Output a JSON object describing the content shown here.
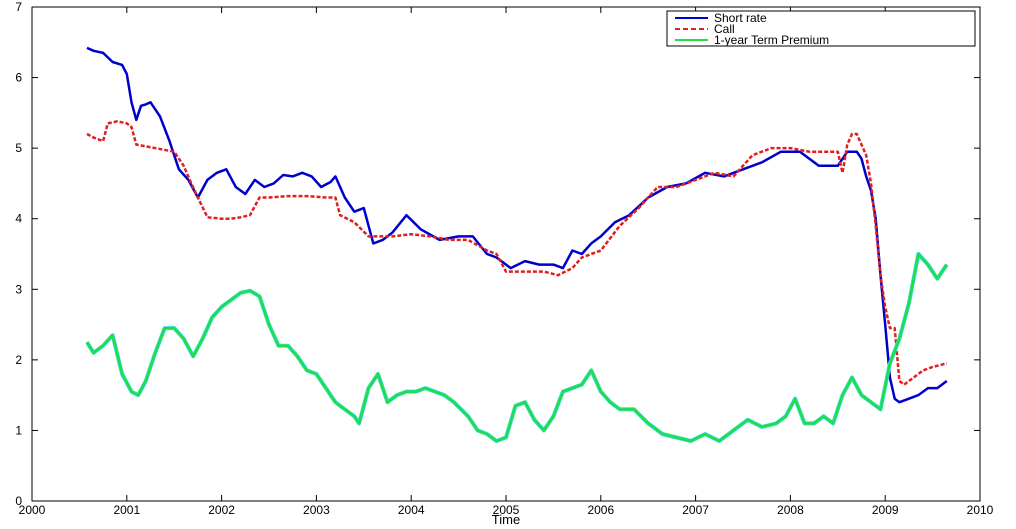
{
  "chart_data": {
    "type": "line",
    "title": "",
    "xlabel": "Time",
    "ylabel": "",
    "xlim": [
      2000,
      2010
    ],
    "ylim": [
      0,
      7
    ],
    "xticks": [
      "2000",
      "2001",
      "2002",
      "2003",
      "2004",
      "2005",
      "2006",
      "2007",
      "2008",
      "2009",
      "2010"
    ],
    "yticks": [
      "0",
      "1",
      "2",
      "3",
      "4",
      "5",
      "6",
      "7"
    ],
    "grid": false,
    "legend_position": "top-right",
    "series": [
      {
        "name": "Short rate",
        "style": "solid",
        "color": "#0000cc",
        "x": [
          2000.58,
          2000.65,
          2000.75,
          2000.85,
          2000.95,
          2001.0,
          2001.05,
          2001.1,
          2001.15,
          2001.2,
          2001.25,
          2001.35,
          2001.45,
          2001.55,
          2001.65,
          2001.75,
          2001.85,
          2001.95,
          2002.05,
          2002.15,
          2002.25,
          2002.35,
          2002.45,
          2002.55,
          2002.65,
          2002.75,
          2002.85,
          2002.95,
          2003.05,
          2003.15,
          2003.2,
          2003.3,
          2003.4,
          2003.5,
          2003.6,
          2003.7,
          2003.8,
          2003.95,
          2004.1,
          2004.3,
          2004.5,
          2004.65,
          2004.8,
          2004.9,
          2005.05,
          2005.2,
          2005.35,
          2005.5,
          2005.6,
          2005.7,
          2005.8,
          2005.9,
          2006.0,
          2006.15,
          2006.3,
          2006.5,
          2006.7,
          2006.9,
          2007.1,
          2007.3,
          2007.5,
          2007.7,
          2007.9,
          2008.1,
          2008.3,
          2008.5,
          2008.6,
          2008.7,
          2008.75,
          2008.8,
          2008.85,
          2008.9,
          2008.95,
          2009.0,
          2009.05,
          2009.1,
          2009.15,
          2009.25,
          2009.35,
          2009.45,
          2009.55,
          2009.65
        ],
        "y": [
          6.42,
          6.38,
          6.35,
          6.22,
          6.18,
          6.05,
          5.65,
          5.4,
          5.6,
          5.62,
          5.65,
          5.45,
          5.1,
          4.7,
          4.55,
          4.3,
          4.55,
          4.65,
          4.7,
          4.45,
          4.35,
          4.55,
          4.45,
          4.5,
          4.62,
          4.6,
          4.65,
          4.6,
          4.45,
          4.52,
          4.6,
          4.3,
          4.1,
          4.15,
          3.65,
          3.7,
          3.8,
          4.05,
          3.85,
          3.7,
          3.75,
          3.75,
          3.5,
          3.45,
          3.3,
          3.4,
          3.35,
          3.35,
          3.3,
          3.55,
          3.5,
          3.65,
          3.75,
          3.95,
          4.05,
          4.3,
          4.45,
          4.5,
          4.65,
          4.6,
          4.7,
          4.8,
          4.95,
          4.95,
          4.75,
          4.75,
          4.95,
          4.95,
          4.85,
          4.6,
          4.4,
          4.0,
          3.2,
          2.5,
          1.75,
          1.45,
          1.4,
          1.45,
          1.5,
          1.6,
          1.6,
          1.7
        ]
      },
      {
        "name": "Call",
        "style": "dashed",
        "color": "#e02020",
        "x": [
          2000.58,
          2000.65,
          2000.75,
          2000.8,
          2000.9,
          2001.0,
          2001.05,
          2001.1,
          2001.3,
          2001.5,
          2001.6,
          2001.68,
          2001.75,
          2001.85,
          2002.0,
          2002.1,
          2002.2,
          2002.3,
          2002.4,
          2002.5,
          2002.7,
          2002.9,
          2003.1,
          2003.2,
          2003.25,
          2003.4,
          2003.55,
          2003.6,
          2003.8,
          2004.0,
          2004.2,
          2004.4,
          2004.6,
          2004.8,
          2004.9,
          2005.0,
          2005.2,
          2005.4,
          2005.55,
          2005.7,
          2005.8,
          2006.0,
          2006.2,
          2006.4,
          2006.6,
          2006.8,
          2007.0,
          2007.2,
          2007.4,
          2007.6,
          2007.8,
          2008.0,
          2008.2,
          2008.4,
          2008.5,
          2008.55,
          2008.6,
          2008.65,
          2008.7,
          2008.8,
          2008.85,
          2008.9,
          2008.95,
          2009.0,
          2009.05,
          2009.1,
          2009.15,
          2009.2,
          2009.3,
          2009.4,
          2009.5,
          2009.65
        ],
        "y": [
          5.2,
          5.15,
          5.1,
          5.35,
          5.38,
          5.35,
          5.3,
          5.05,
          5.0,
          4.95,
          4.75,
          4.5,
          4.3,
          4.02,
          4.0,
          4.0,
          4.02,
          4.05,
          4.3,
          4.3,
          4.32,
          4.32,
          4.3,
          4.3,
          4.05,
          3.95,
          3.75,
          3.75,
          3.75,
          3.78,
          3.75,
          3.7,
          3.7,
          3.55,
          3.5,
          3.25,
          3.25,
          3.25,
          3.2,
          3.3,
          3.45,
          3.55,
          3.9,
          4.15,
          4.45,
          4.45,
          4.55,
          4.65,
          4.6,
          4.9,
          5.0,
          5.0,
          4.95,
          4.95,
          4.95,
          4.65,
          5.05,
          5.2,
          5.2,
          4.9,
          4.5,
          3.9,
          3.2,
          2.75,
          2.45,
          2.45,
          1.7,
          1.65,
          1.75,
          1.85,
          1.9,
          1.95
        ]
      },
      {
        "name": "1-year Term Premium",
        "style": "solid",
        "color": "#22dd44",
        "x": [
          2000.58,
          2000.65,
          2000.75,
          2000.85,
          2000.95,
          2001.05,
          2001.12,
          2001.2,
          2001.3,
          2001.4,
          2001.5,
          2001.6,
          2001.7,
          2001.8,
          2001.9,
          2002.0,
          2002.1,
          2002.2,
          2002.3,
          2002.4,
          2002.5,
          2002.6,
          2002.7,
          2002.8,
          2002.9,
          2003.0,
          2003.1,
          2003.2,
          2003.3,
          2003.4,
          2003.45,
          2003.55,
          2003.65,
          2003.75,
          2003.85,
          2003.95,
          2004.05,
          2004.15,
          2004.25,
          2004.35,
          2004.45,
          2004.6,
          2004.7,
          2004.8,
          2004.9,
          2005.0,
          2005.1,
          2005.2,
          2005.3,
          2005.4,
          2005.5,
          2005.6,
          2005.7,
          2005.8,
          2005.9,
          2006.0,
          2006.1,
          2006.2,
          2006.35,
          2006.5,
          2006.65,
          2006.8,
          2006.95,
          2007.1,
          2007.25,
          2007.4,
          2007.55,
          2007.7,
          2007.85,
          2007.95,
          2008.05,
          2008.15,
          2008.25,
          2008.35,
          2008.45,
          2008.55,
          2008.65,
          2008.75,
          2008.85,
          2008.95,
          2009.05,
          2009.15,
          2009.25,
          2009.35,
          2009.45,
          2009.55,
          2009.65
        ],
        "y": [
          2.25,
          2.1,
          2.2,
          2.35,
          1.8,
          1.55,
          1.5,
          1.7,
          2.1,
          2.45,
          2.45,
          2.3,
          2.05,
          2.3,
          2.6,
          2.75,
          2.85,
          2.95,
          2.98,
          2.9,
          2.5,
          2.2,
          2.2,
          2.05,
          1.85,
          1.8,
          1.6,
          1.4,
          1.3,
          1.2,
          1.1,
          1.6,
          1.8,
          1.4,
          1.5,
          1.55,
          1.55,
          1.6,
          1.55,
          1.5,
          1.4,
          1.2,
          1.0,
          0.95,
          0.85,
          0.9,
          1.35,
          1.4,
          1.15,
          1.0,
          1.2,
          1.55,
          1.6,
          1.65,
          1.85,
          1.55,
          1.4,
          1.3,
          1.3,
          1.1,
          0.95,
          0.9,
          0.85,
          0.95,
          0.85,
          1.0,
          1.15,
          1.05,
          1.1,
          1.2,
          1.45,
          1.1,
          1.1,
          1.2,
          1.1,
          1.5,
          1.75,
          1.5,
          1.4,
          1.3,
          1.95,
          2.3,
          2.8,
          3.5,
          3.35,
          3.15,
          3.35
        ]
      }
    ]
  }
}
